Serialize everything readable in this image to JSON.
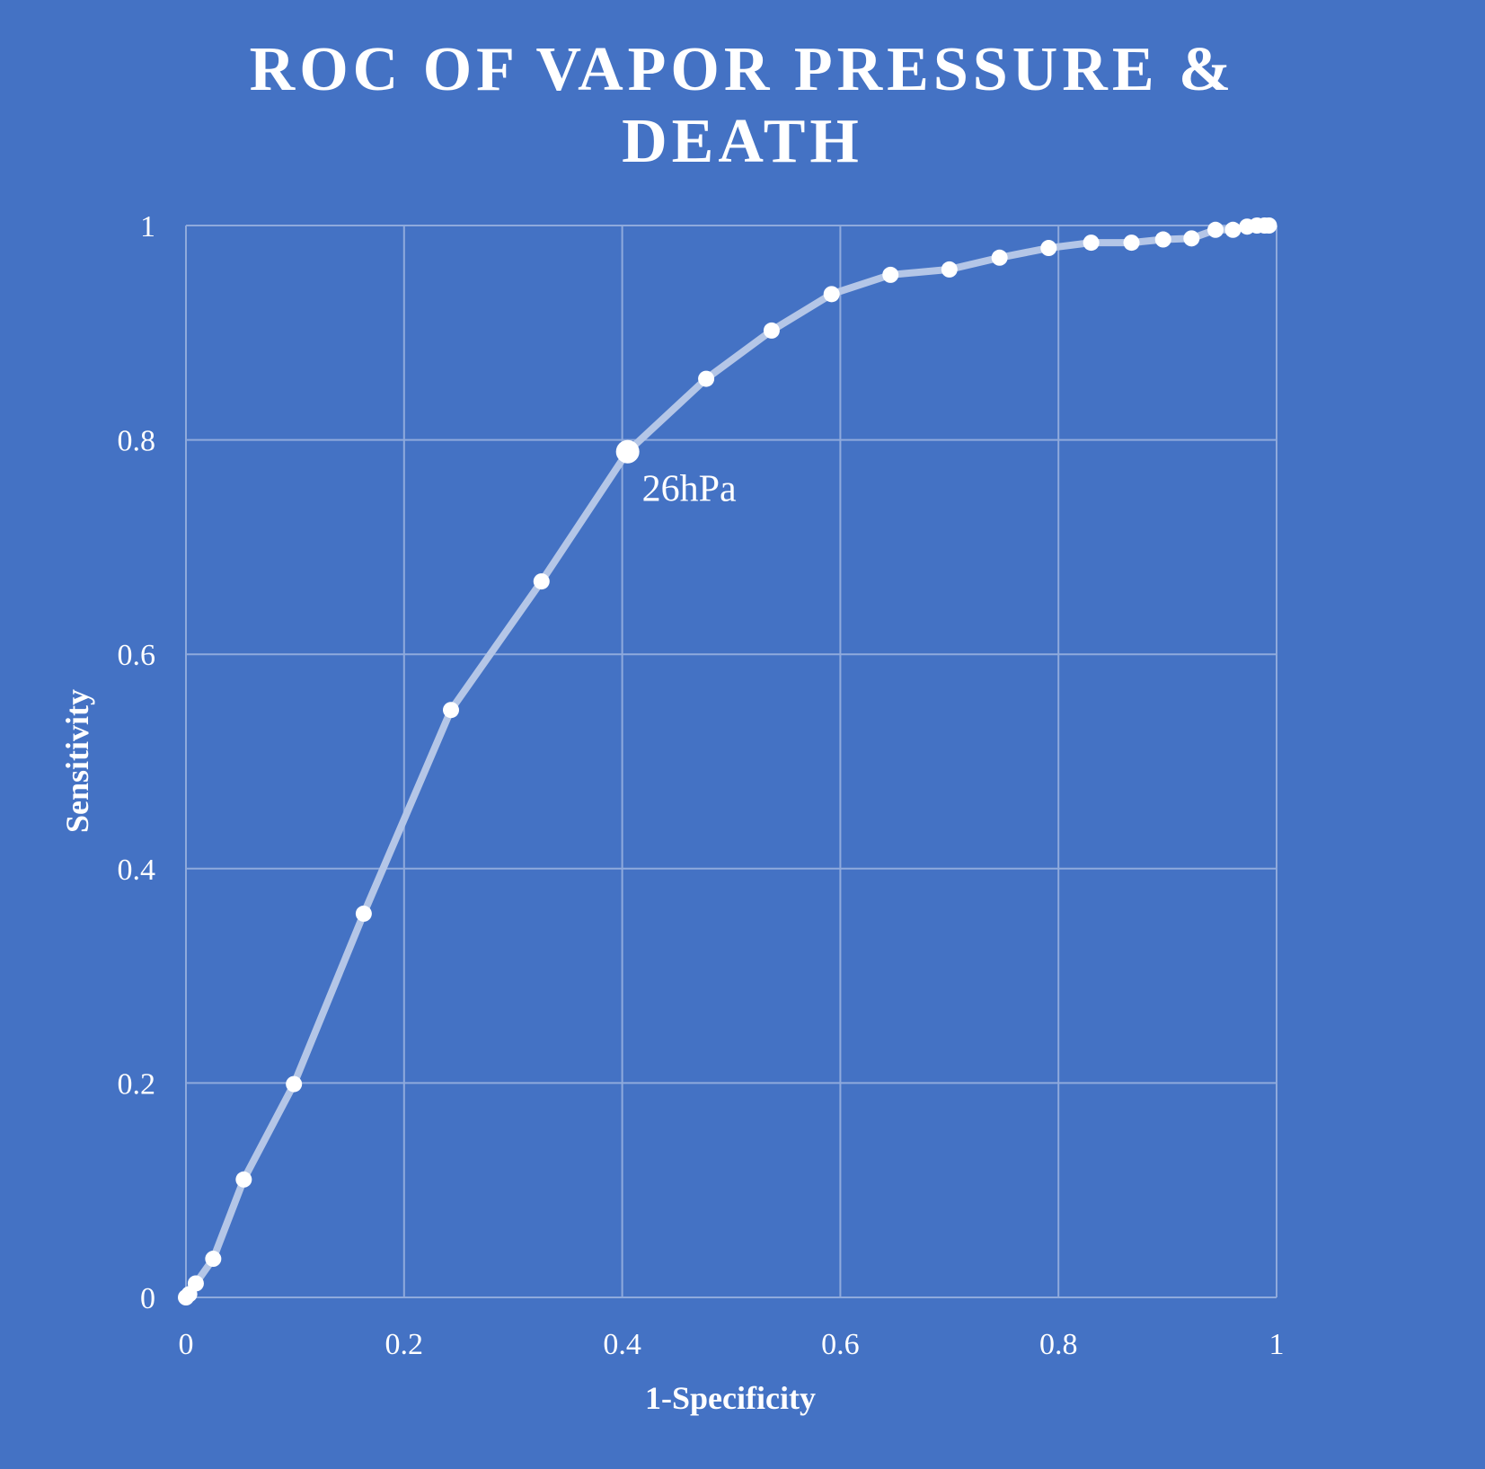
{
  "chart_data": {
    "type": "line",
    "title_lines": [
      "ROC OF VAPOR PRESSURE &",
      "DEATH"
    ],
    "xlabel": "1-Specificity",
    "ylabel": "Sensitivity",
    "xlim": [
      0,
      1
    ],
    "ylim": [
      0,
      1
    ],
    "x_ticks": [
      0,
      0.2,
      0.4,
      0.6,
      0.8,
      1
    ],
    "x_tick_labels": [
      "0",
      "0.2",
      "0.4",
      "0.6",
      "0.8",
      "1"
    ],
    "y_ticks": [
      0,
      0.2,
      0.4,
      0.6,
      0.8,
      1
    ],
    "y_tick_labels": [
      "0",
      "0.2",
      "0.4",
      "0.6",
      "0.8",
      "1"
    ],
    "grid": true,
    "legend": false,
    "colors": {
      "background": "#4472c4",
      "line": "#b4c6e7",
      "marker": "#ffffff",
      "grid": "#8faadc",
      "text": "#ffffff"
    },
    "series": [
      {
        "x": [
          0,
          0.003,
          0.009,
          0.025,
          0.053,
          0.099,
          0.163,
          0.243,
          0.326,
          0.405,
          0.477,
          0.537,
          0.592,
          0.646,
          0.7,
          0.746,
          0.791,
          0.83,
          0.867,
          0.896,
          0.922,
          0.944,
          0.96,
          0.973,
          0.982,
          0.989,
          0.993
        ],
        "y": [
          0,
          0.003,
          0.013,
          0.036,
          0.11,
          0.199,
          0.358,
          0.548,
          0.668,
          0.789,
          0.857,
          0.902,
          0.936,
          0.954,
          0.959,
          0.97,
          0.979,
          0.984,
          0.984,
          0.987,
          0.988,
          0.996,
          0.996,
          0.999,
          1.0,
          1.0,
          1.0
        ]
      }
    ],
    "annotations": [
      {
        "text": "26hPa",
        "x": 0.405,
        "y": 0.789
      }
    ]
  }
}
